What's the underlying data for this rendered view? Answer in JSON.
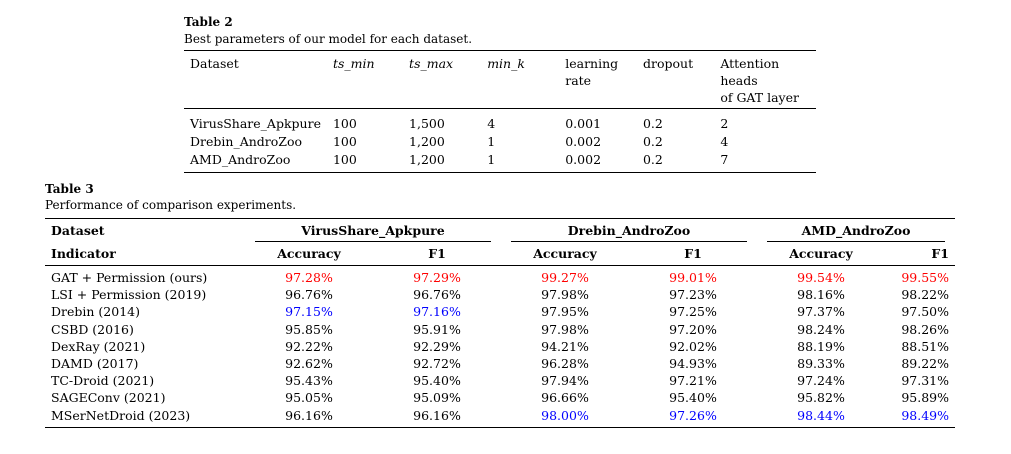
{
  "table2": {
    "label": "Table 2",
    "caption": "Best parameters of our model for each dataset.",
    "headers": {
      "dataset": "Dataset",
      "ts_min": "ts_min",
      "ts_max": "ts_max",
      "min_k": "min_k",
      "lr_line1": "learning",
      "lr_line2": "rate",
      "dropout": "dropout",
      "heads_line1": "Attention heads",
      "heads_line2": "of GAT layer"
    },
    "rows": [
      {
        "dataset": "VirusShare_Apkpure",
        "ts_min": "100",
        "ts_max": "1,500",
        "min_k": "4",
        "lr": "0.001",
        "dropout": "0.2",
        "heads": "2"
      },
      {
        "dataset": "Drebin_AndroZoo",
        "ts_min": "100",
        "ts_max": "1,200",
        "min_k": "1",
        "lr": "0.002",
        "dropout": "0.2",
        "heads": "4"
      },
      {
        "dataset": "AMD_AndroZoo",
        "ts_min": "100",
        "ts_max": "1,200",
        "min_k": "1",
        "lr": "0.002",
        "dropout": "0.2",
        "heads": "7"
      }
    ]
  },
  "table3": {
    "label": "Table 3",
    "caption": "Performance of comparison experiments.",
    "header_dataset": "Dataset",
    "header_indicator": "Indicator",
    "groups": [
      "VirusShare_Apkpure",
      "Drebin_AndroZoo",
      "AMD_AndroZoo"
    ],
    "subheaders": [
      "Accuracy",
      "F1",
      "Accuracy",
      "F1",
      "Accuracy",
      "F1"
    ],
    "colors": {
      "best": "#ff0000",
      "second": "#0000ff"
    },
    "rows": [
      {
        "name": "GAT + Permission (ours)",
        "vals": [
          "97.28%",
          "97.29%",
          "99.27%",
          "99.01%",
          "99.54%",
          "99.55%"
        ],
        "hl": [
          "best",
          "best",
          "best",
          "best",
          "best",
          "best"
        ]
      },
      {
        "name": "LSI + Permission (2019)",
        "vals": [
          "96.76%",
          "96.76%",
          "97.98%",
          "97.23%",
          "98.16%",
          "98.22%"
        ],
        "hl": [
          "",
          "",
          "",
          "",
          "",
          ""
        ]
      },
      {
        "name": "Drebin (2014)",
        "vals": [
          "97.15%",
          "97.16%",
          "97.95%",
          "97.25%",
          "97.37%",
          "97.50%"
        ],
        "hl": [
          "second",
          "second",
          "",
          "",
          "",
          ""
        ]
      },
      {
        "name": "CSBD (2016)",
        "vals": [
          "95.85%",
          "95.91%",
          "97.98%",
          "97.20%",
          "98.24%",
          "98.26%"
        ],
        "hl": [
          "",
          "",
          "",
          "",
          "",
          ""
        ]
      },
      {
        "name": "DexRay (2021)",
        "vals": [
          "92.22%",
          "92.29%",
          "94.21%",
          "92.02%",
          "88.19%",
          "88.51%"
        ],
        "hl": [
          "",
          "",
          "",
          "",
          "",
          ""
        ]
      },
      {
        "name": "DAMD (2017)",
        "vals": [
          "92.62%",
          "92.72%",
          "96.28%",
          "94.93%",
          "89.33%",
          "89.22%"
        ],
        "hl": [
          "",
          "",
          "",
          "",
          "",
          ""
        ]
      },
      {
        "name": "TC-Droid (2021)",
        "vals": [
          "95.43%",
          "95.40%",
          "97.94%",
          "97.21%",
          "97.24%",
          "97.31%"
        ],
        "hl": [
          "",
          "",
          "",
          "",
          "",
          ""
        ]
      },
      {
        "name": "SAGEConv (2021)",
        "vals": [
          "95.05%",
          "95.09%",
          "96.66%",
          "95.40%",
          "95.82%",
          "95.89%"
        ],
        "hl": [
          "",
          "",
          "",
          "",
          "",
          ""
        ]
      },
      {
        "name": "MSerNetDroid (2023)",
        "vals": [
          "96.16%",
          "96.16%",
          "98.00%",
          "97.26%",
          "98.44%",
          "98.49%"
        ],
        "hl": [
          "",
          "",
          "second",
          "second",
          "second",
          "second"
        ]
      }
    ]
  }
}
